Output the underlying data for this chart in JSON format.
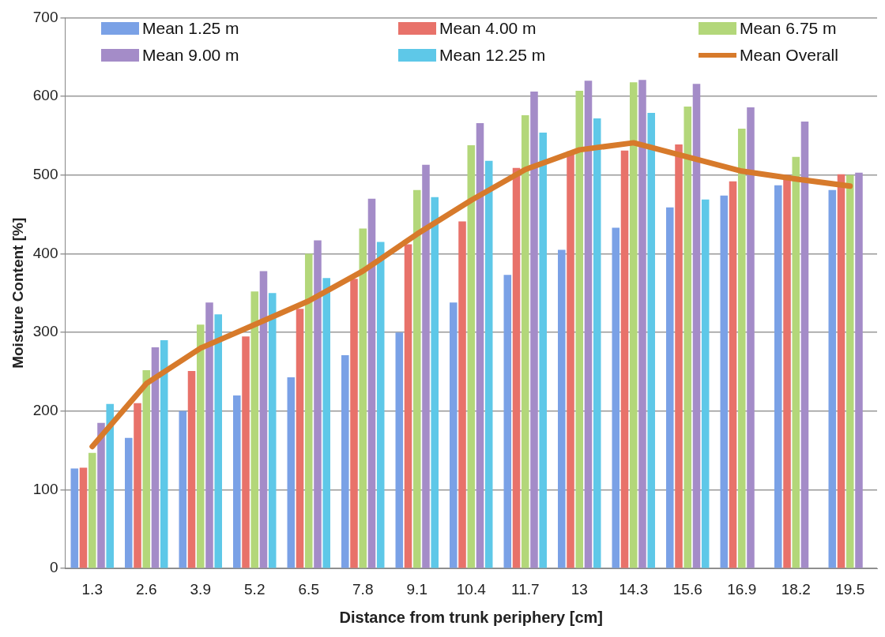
{
  "chart_data": {
    "type": "bar",
    "xlabel": "Distance from trunk periphery [cm]",
    "ylabel": "Moisture Content [%]",
    "categories": [
      "1.3",
      "2.6",
      "3.9",
      "5.2",
      "6.5",
      "7.8",
      "9.1",
      "10.4",
      "11.7",
      "13",
      "14.3",
      "15.6",
      "16.9",
      "18.2",
      "19.5"
    ],
    "series": [
      {
        "name": "Mean 1.25 m",
        "color": "#7aa1e6",
        "values": [
          127,
          166,
          200,
          220,
          243,
          271,
          300,
          338,
          373,
          405,
          433,
          459,
          474,
          487,
          481
        ]
      },
      {
        "name": "Mean 4.00 m",
        "color": "#e8726a",
        "values": [
          128,
          210,
          251,
          295,
          330,
          368,
          412,
          441,
          509,
          530,
          531,
          539,
          492,
          500,
          501
        ]
      },
      {
        "name": "Mean 6.75 m",
        "color": "#b3d77a",
        "values": [
          147,
          252,
          310,
          352,
          400,
          432,
          481,
          538,
          576,
          607,
          618,
          587,
          559,
          523,
          500
        ]
      },
      {
        "name": "Mean 9.00 m",
        "color": "#a48cc8",
        "values": [
          185,
          281,
          338,
          378,
          417,
          470,
          513,
          566,
          606,
          620,
          621,
          616,
          586,
          568,
          503
        ]
      },
      {
        "name": "Mean 12.25 m",
        "color": "#5ec8e8",
        "values": [
          209,
          290,
          323,
          350,
          369,
          415,
          472,
          518,
          554,
          572,
          579,
          469,
          null,
          null,
          null
        ]
      },
      {
        "name": "Mean Overall",
        "type": "line",
        "color": "#d77a2b",
        "values": [
          155,
          235,
          280,
          310,
          340,
          378,
          425,
          468,
          507,
          532,
          541,
          523,
          505,
          495,
          486
        ]
      }
    ],
    "ylim": [
      0,
      700
    ],
    "yticks": [
      0,
      100,
      200,
      300,
      400,
      500,
      600,
      700
    ],
    "grid": "y",
    "legend": "top",
    "marker": "none"
  }
}
